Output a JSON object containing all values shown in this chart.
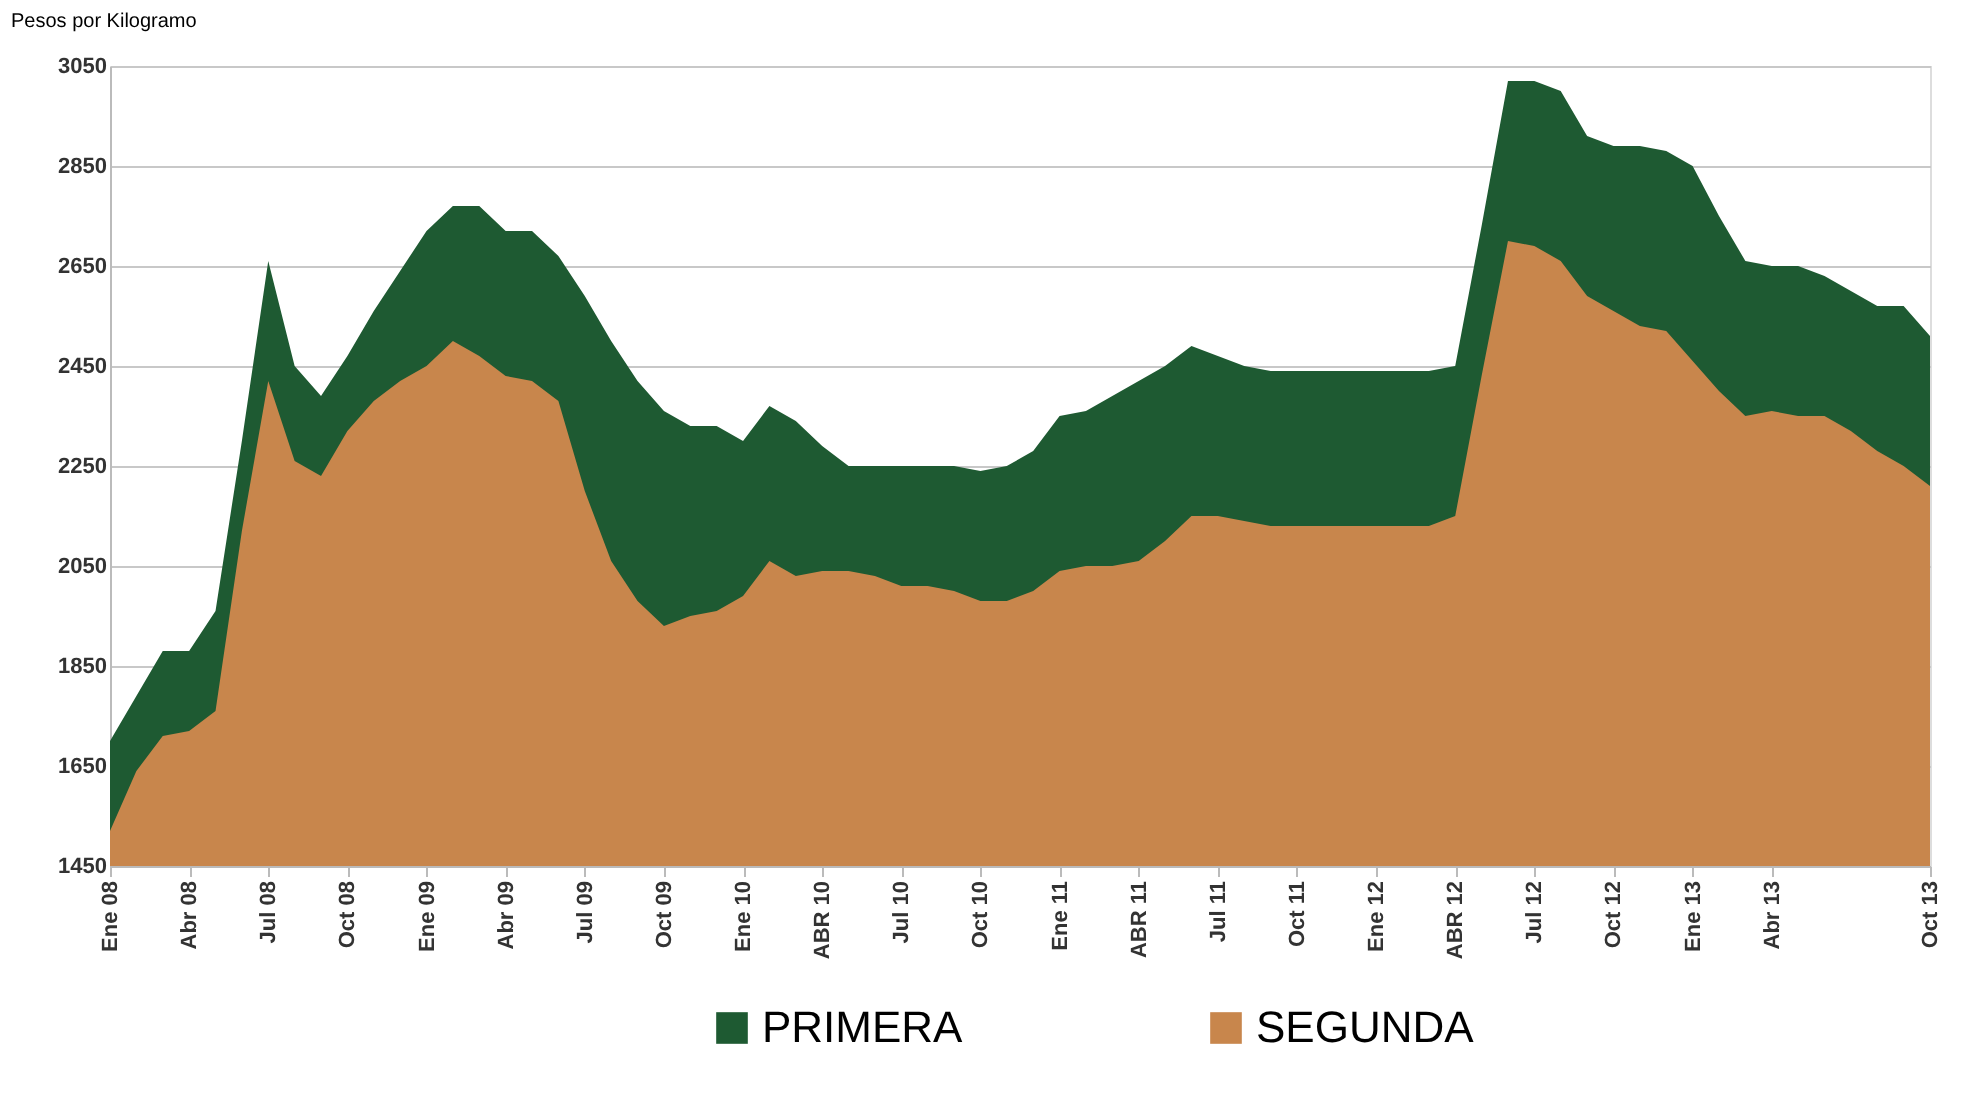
{
  "chart_data": {
    "type": "area",
    "ylabel": "Pesos por Kilogramo",
    "categories": [
      "Ene 08",
      null,
      null,
      "Abr 08",
      null,
      null,
      "Jul 08",
      null,
      null,
      "Oct 08",
      null,
      null,
      "Ene 09",
      null,
      null,
      "Abr 09",
      null,
      null,
      "Jul 09",
      null,
      null,
      "Oct 09",
      null,
      null,
      "Ene 10",
      null,
      null,
      "ABR 10",
      null,
      null,
      "Jul 10",
      null,
      null,
      "Oct 10",
      null,
      null,
      "Ene 11",
      null,
      null,
      "ABR 11",
      null,
      null,
      "Jul 11",
      null,
      null,
      "Oct 11",
      null,
      null,
      "Ene 12",
      null,
      null,
      "ABR 12",
      null,
      null,
      "Jul 12",
      null,
      null,
      "Oct 12",
      null,
      null,
      "Ene 13",
      null,
      null,
      "Abr 13",
      null,
      null,
      null,
      null,
      null,
      "Oct 13"
    ],
    "series": [
      {
        "name": "PRIMERA",
        "color": "#1e5a32",
        "values": [
          1700,
          1790,
          1880,
          1880,
          1960,
          2300,
          2660,
          2450,
          2390,
          2470,
          2560,
          2640,
          2720,
          2770,
          2770,
          2720,
          2720,
          2670,
          2590,
          2500,
          2420,
          2360,
          2330,
          2330,
          2300,
          2370,
          2340,
          2290,
          2250,
          2250,
          2250,
          2250,
          2250,
          2240,
          2250,
          2280,
          2350,
          2360,
          2390,
          2420,
          2450,
          2490,
          2470,
          2450,
          2440,
          2440,
          2440,
          2440,
          2440,
          2440,
          2440,
          2450,
          2730,
          3020,
          3020,
          3000,
          2910,
          2890,
          2890,
          2880,
          2850,
          2750,
          2660,
          2650,
          2650,
          2630,
          2600,
          2570,
          2570,
          2510
        ]
      },
      {
        "name": "SEGUNDA",
        "color": "#c8864c",
        "values": [
          1520,
          1640,
          1710,
          1720,
          1760,
          2120,
          2420,
          2260,
          2230,
          2320,
          2380,
          2420,
          2450,
          2500,
          2470,
          2430,
          2420,
          2380,
          2200,
          2060,
          1980,
          1930,
          1950,
          1960,
          1990,
          2060,
          2030,
          2040,
          2040,
          2030,
          2010,
          2010,
          2000,
          1980,
          1980,
          2000,
          2040,
          2050,
          2050,
          2060,
          2100,
          2150,
          2150,
          2140,
          2130,
          2130,
          2130,
          2130,
          2130,
          2130,
          2130,
          2150,
          2430,
          2700,
          2690,
          2660,
          2590,
          2560,
          2530,
          2520,
          2460,
          2400,
          2350,
          2360,
          2350,
          2350,
          2320,
          2280,
          2250,
          2210
        ]
      }
    ],
    "ylim": [
      1450,
      3050
    ],
    "yticks": [
      1450,
      1650,
      1850,
      2050,
      2250,
      2450,
      2650,
      2850,
      3050
    ],
    "grid": "y",
    "legend": "bottom"
  }
}
